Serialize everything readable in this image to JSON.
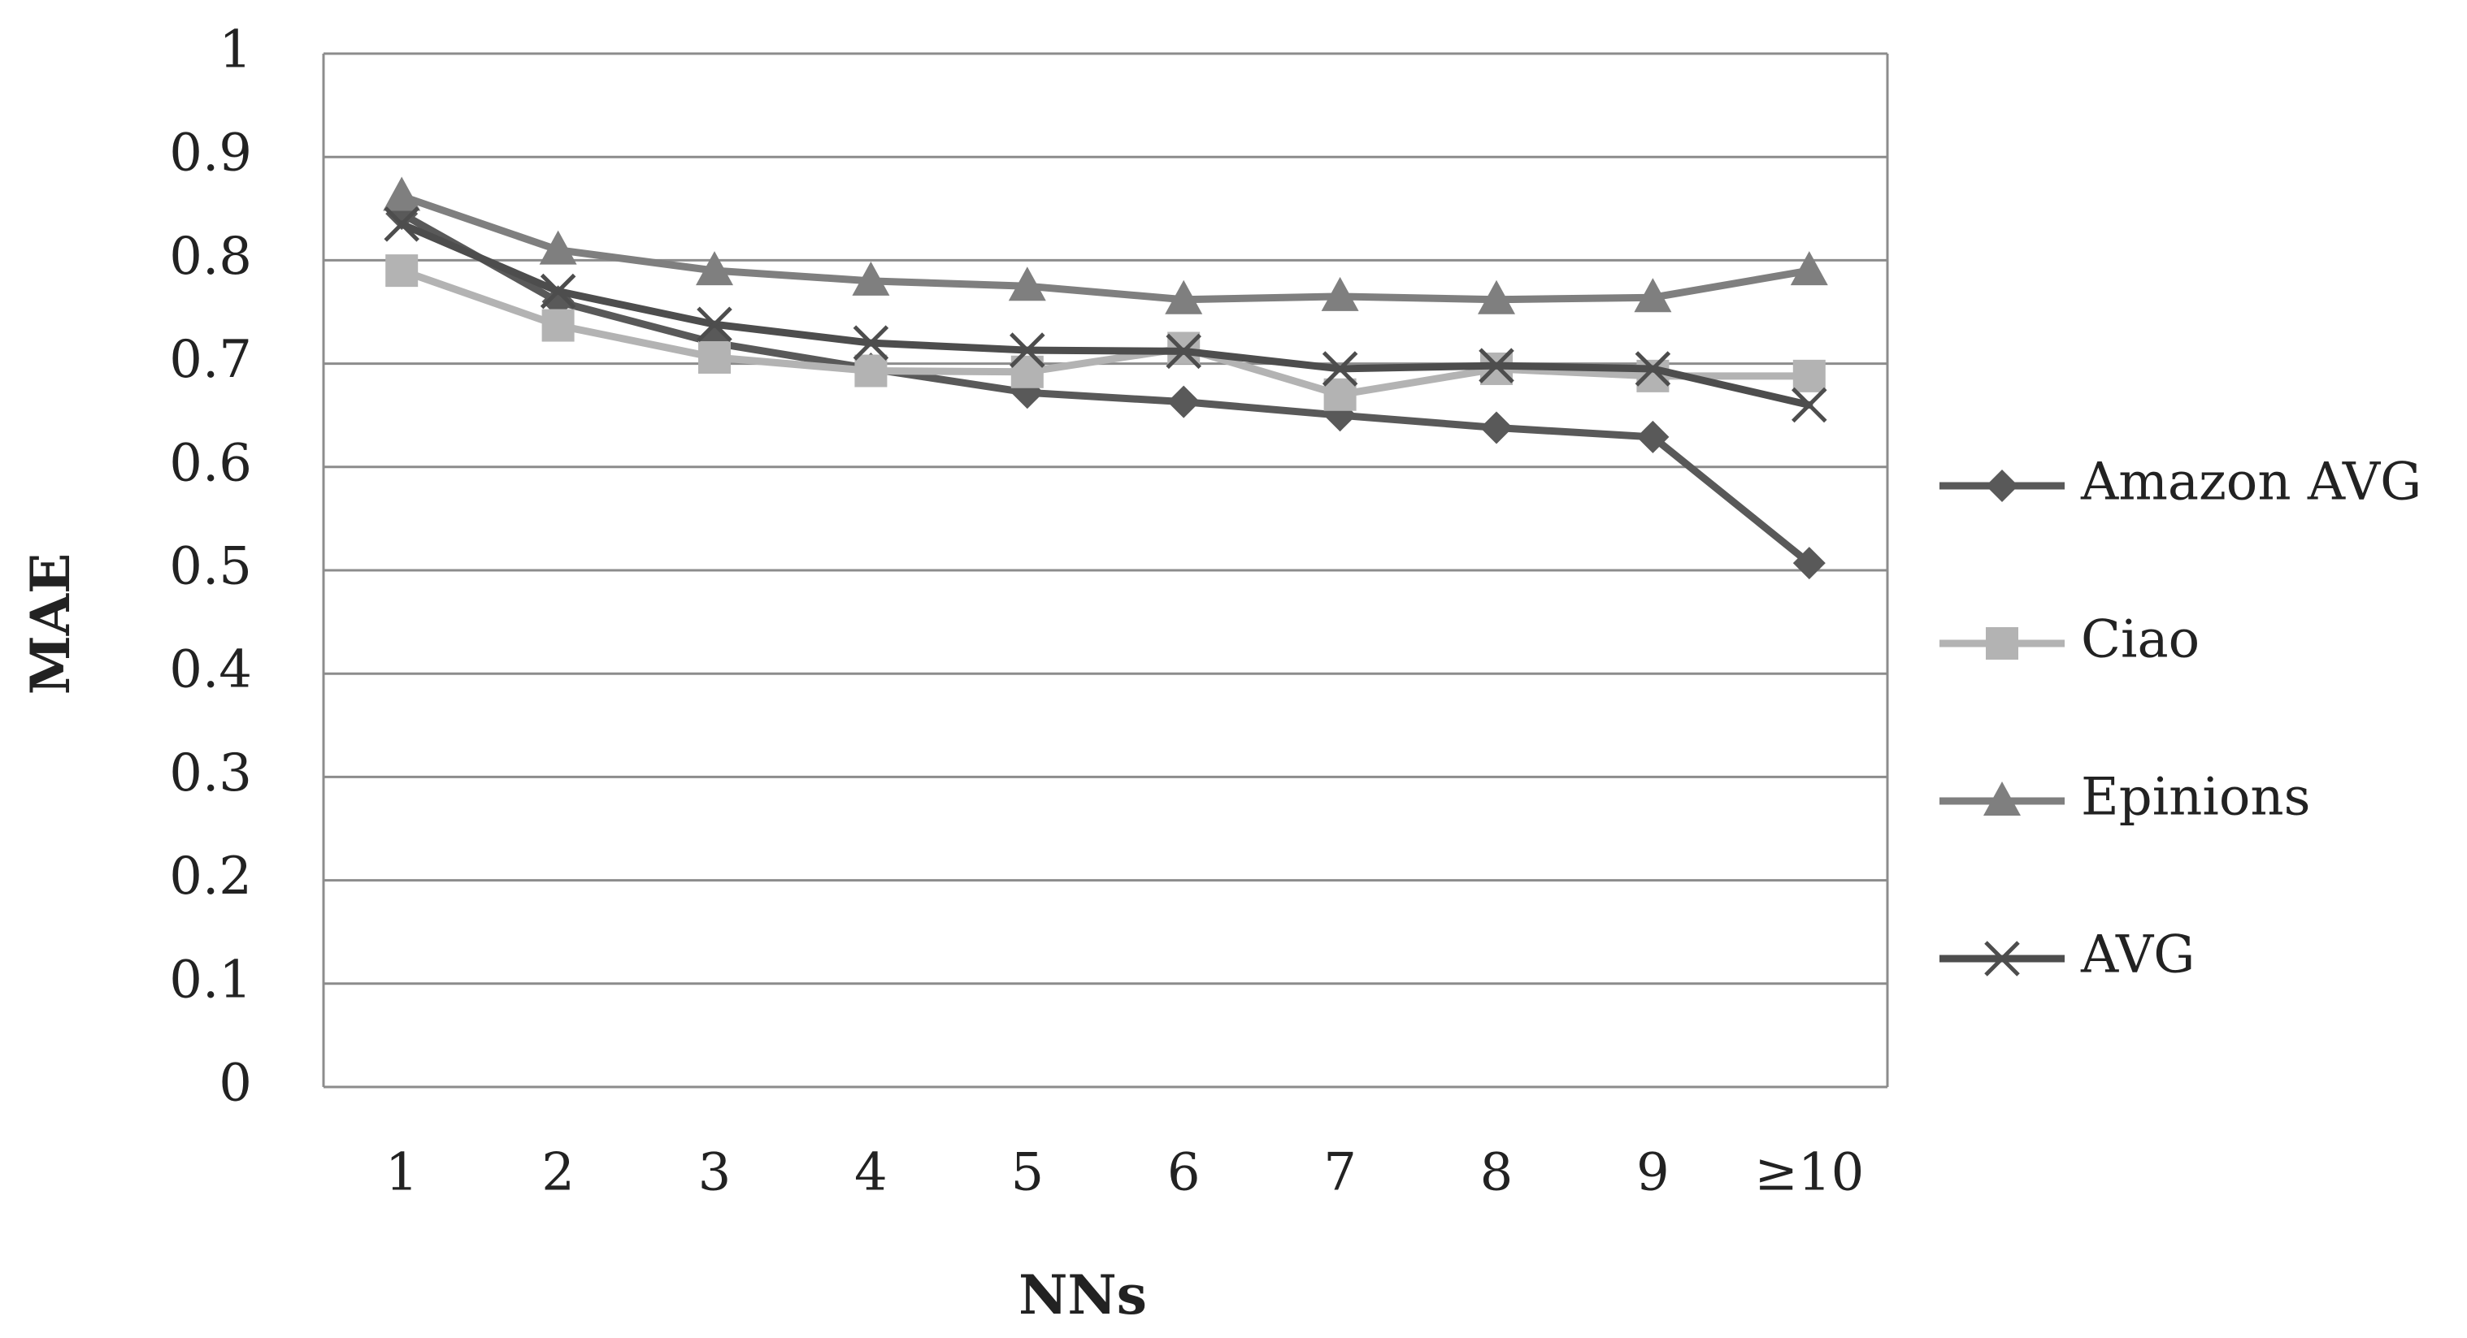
{
  "chart_data": {
    "type": "line",
    "title": "",
    "xlabel": "NNs",
    "ylabel": "MAE",
    "categories": [
      "1",
      "2",
      "3",
      "4",
      "5",
      "6",
      "7",
      "8",
      "9",
      "≥10"
    ],
    "y_ticks": [
      "0",
      "0.1",
      "0.2",
      "0.3",
      "0.4",
      "0.5",
      "0.6",
      "0.7",
      "0.8",
      "0.9",
      "1"
    ],
    "ylim": [
      0,
      1
    ],
    "grid": true,
    "legend_position": "right",
    "series": [
      {
        "name": "Amazon AVG",
        "marker": "diamond",
        "color": "#595959",
        "values": [
          0.845,
          0.76,
          0.72,
          0.695,
          0.672,
          0.663,
          0.65,
          0.638,
          0.629,
          0.507
        ]
      },
      {
        "name": "Ciao",
        "marker": "square",
        "color": "#b3b3b3",
        "values": [
          0.79,
          0.737,
          0.706,
          0.693,
          0.692,
          0.715,
          0.67,
          0.695,
          0.688,
          0.688
        ]
      },
      {
        "name": "Epinions",
        "marker": "triangle",
        "color": "#7f7f7f",
        "values": [
          0.862,
          0.81,
          0.79,
          0.78,
          0.775,
          0.762,
          0.765,
          0.762,
          0.764,
          0.79
        ]
      },
      {
        "name": "AVG",
        "marker": "x",
        "color": "#4d4d4d",
        "values": [
          0.835,
          0.77,
          0.738,
          0.72,
          0.713,
          0.712,
          0.695,
          0.698,
          0.695,
          0.66
        ]
      }
    ]
  }
}
